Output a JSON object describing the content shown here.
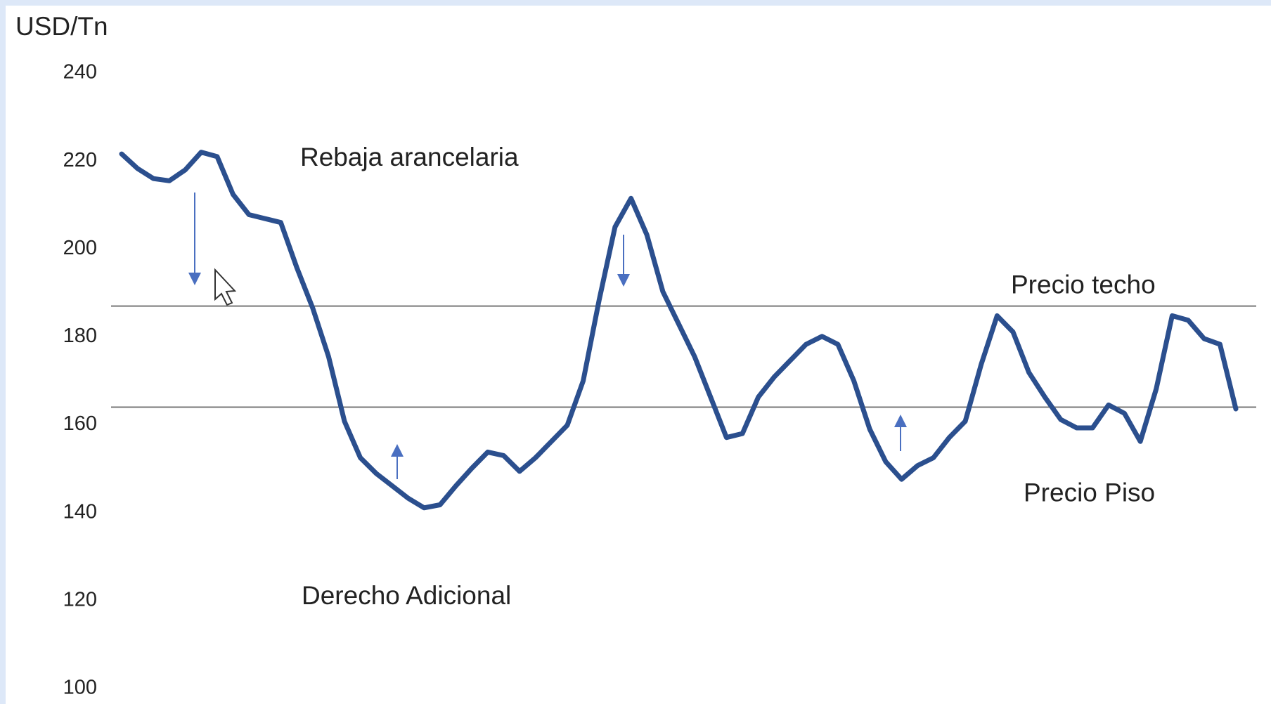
{
  "chart_data": {
    "type": "line",
    "y_axis_label": "USD/Tn",
    "categories": [
      null,
      null,
      null,
      null,
      null,
      null,
      null,
      null,
      null,
      null,
      null,
      null,
      null,
      null,
      null,
      null,
      null,
      null,
      null,
      null,
      null,
      null,
      null,
      null,
      null,
      null,
      null,
      null,
      null,
      null,
      null,
      null,
      null,
      null,
      null,
      null,
      null,
      null,
      null,
      null,
      null,
      null,
      null,
      null,
      null,
      null,
      null,
      null,
      null,
      null,
      null,
      null,
      null,
      null,
      null,
      null,
      null,
      null,
      null,
      null,
      null,
      null,
      null,
      null,
      null,
      null,
      null,
      null,
      null,
      null,
      null
    ],
    "series": [
      {
        "color": "#2b4f8e",
        "values": [
          221.6,
          218.3,
          216,
          215.5,
          218,
          222,
          221,
          212.4,
          207.8,
          206.9,
          206,
          195.8,
          186.6,
          175.5,
          160.8,
          152.5,
          148.9,
          146.1,
          143.3,
          141.1,
          141.8,
          146.1,
          150.1,
          153.8,
          153,
          149.4,
          152.5,
          156.2,
          159.9,
          170,
          188.4,
          205,
          211.5,
          203.2,
          190.3,
          182.9,
          175.5,
          166.3,
          157.1,
          158,
          166.3,
          170.9,
          174.6,
          178.3,
          180.1,
          178.3,
          170,
          159,
          151.6,
          147.6,
          150.7,
          152.5,
          157.1,
          160.8,
          173.7,
          184.8,
          181.1,
          171.9,
          166.3,
          161.2,
          159.3,
          159.3,
          164.5,
          162.6,
          156.2,
          168.2,
          184.8,
          183.8,
          179.6,
          178.3,
          163.6
        ]
      }
    ],
    "ylim": [
      100,
      240
    ],
    "yticks": [
      100,
      120,
      140,
      160,
      180,
      200,
      220,
      240
    ],
    "reference_lines": [
      {
        "value": 187,
        "label": "Precio techo"
      },
      {
        "value": 164,
        "label": "Precio Piso"
      }
    ],
    "annotations": [
      "Rebaja arancelaria",
      "Derecho Adicional"
    ]
  }
}
